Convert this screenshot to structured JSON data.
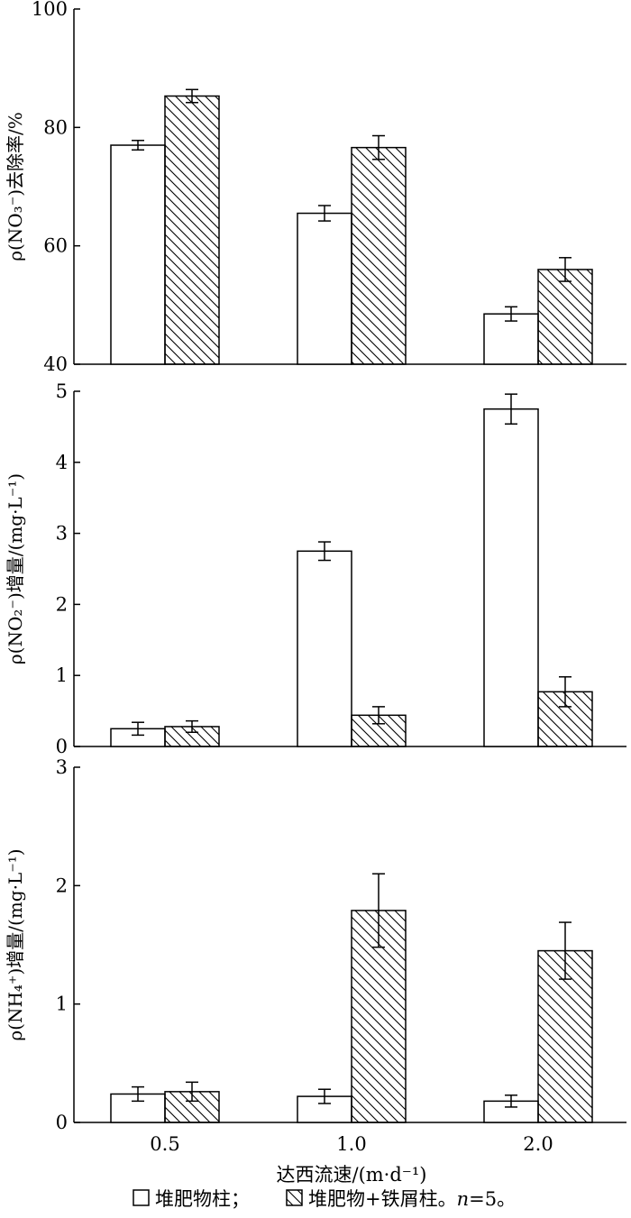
{
  "chart_data": [
    {
      "type": "bar",
      "categories": [
        "0.5",
        "1.0",
        "2.0"
      ],
      "ylabel": "ρ(NO₃⁻)去除率/%",
      "ylim": [
        40,
        100
      ],
      "yticks": [
        "40",
        "60",
        "80",
        "100"
      ],
      "series": [
        {
          "name": "堆肥物柱",
          "values": [
            77.0,
            65.5,
            48.5
          ],
          "errors": [
            0.8,
            1.3,
            1.2
          ]
        },
        {
          "name": "堆肥物+铁屑柱",
          "values": [
            85.3,
            76.6,
            56.0
          ],
          "errors": [
            1.1,
            2.0,
            2.0
          ]
        }
      ]
    },
    {
      "type": "bar",
      "categories": [
        "0.5",
        "1.0",
        "2.0"
      ],
      "ylabel": "ρ(NO₂⁻)增量/(mg·L⁻¹)",
      "ylim": [
        0,
        5
      ],
      "yticks": [
        "0",
        "1",
        "2",
        "3",
        "4",
        "5"
      ],
      "series": [
        {
          "name": "堆肥物柱",
          "values": [
            0.25,
            2.75,
            4.75
          ],
          "errors": [
            0.09,
            0.13,
            0.21
          ]
        },
        {
          "name": "堆肥物+铁屑柱",
          "values": [
            0.28,
            0.44,
            0.77
          ],
          "errors": [
            0.08,
            0.12,
            0.21
          ]
        }
      ]
    },
    {
      "type": "bar",
      "categories": [
        "0.5",
        "1.0",
        "2.0"
      ],
      "ylabel": "ρ(NH₄⁺)增量/(mg·L⁻¹)",
      "ylim": [
        0,
        3
      ],
      "yticks": [
        "0",
        "1",
        "2",
        "3"
      ],
      "xlabel": "达西流速/(m·d⁻¹)",
      "series": [
        {
          "name": "堆肥物柱",
          "values": [
            0.24,
            0.22,
            0.18
          ],
          "errors": [
            0.06,
            0.06,
            0.05
          ]
        },
        {
          "name": "堆肥物+铁屑柱",
          "values": [
            0.26,
            1.79,
            1.45
          ],
          "errors": [
            0.08,
            0.31,
            0.24
          ]
        }
      ]
    }
  ],
  "legend": {
    "item1": "堆肥物柱；",
    "item2": "堆肥物+铁屑柱。",
    "note_var": "n",
    "note_val": "=5。"
  },
  "colors": {
    "bar_fill": "#ffffff",
    "stroke": "#000000"
  }
}
